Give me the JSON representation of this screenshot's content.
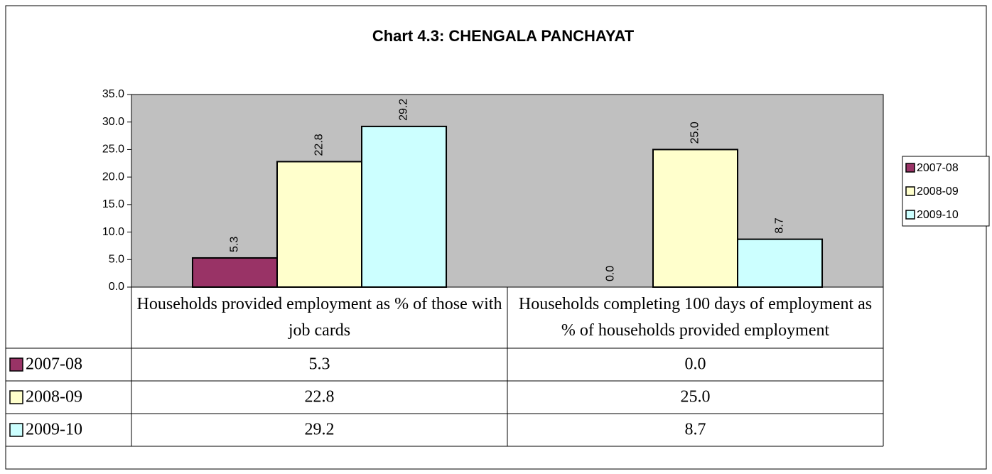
{
  "chart_data": {
    "type": "bar",
    "title": "Chart 4.3: CHENGALA  PANCHAYAT",
    "categories": [
      "Households provided employment as % of those with job cards",
      "Households completing 100 days of employment as % of households provided employment"
    ],
    "series": [
      {
        "name": "2007-08",
        "color": "#993366",
        "values": [
          5.3,
          0
        ],
        "value_labels": [
          "5.3",
          "0.0"
        ]
      },
      {
        "name": "2008-09",
        "color": "#ffffcc",
        "values": [
          22.8,
          25
        ],
        "value_labels": [
          "22.8",
          "25.0"
        ]
      },
      {
        "name": "2009-10",
        "color": "#ccffff",
        "values": [
          29.2,
          8.7
        ],
        "value_labels": [
          "29.2",
          "8.7"
        ]
      }
    ],
    "ylim": [
      0,
      35
    ],
    "yticks": [
      {
        "value": 0,
        "label": "0.0"
      },
      {
        "value": 5,
        "label": "5.0"
      },
      {
        "value": 10,
        "label": "10.0"
      },
      {
        "value": 15,
        "label": "15.0"
      },
      {
        "value": 20,
        "label": "20.0"
      },
      {
        "value": 25,
        "label": "25.0"
      },
      {
        "value": 30,
        "label": "30.0"
      },
      {
        "value": 35,
        "label": "35.0"
      }
    ],
    "plot_background": "#c0c0c0",
    "legend": "right"
  }
}
